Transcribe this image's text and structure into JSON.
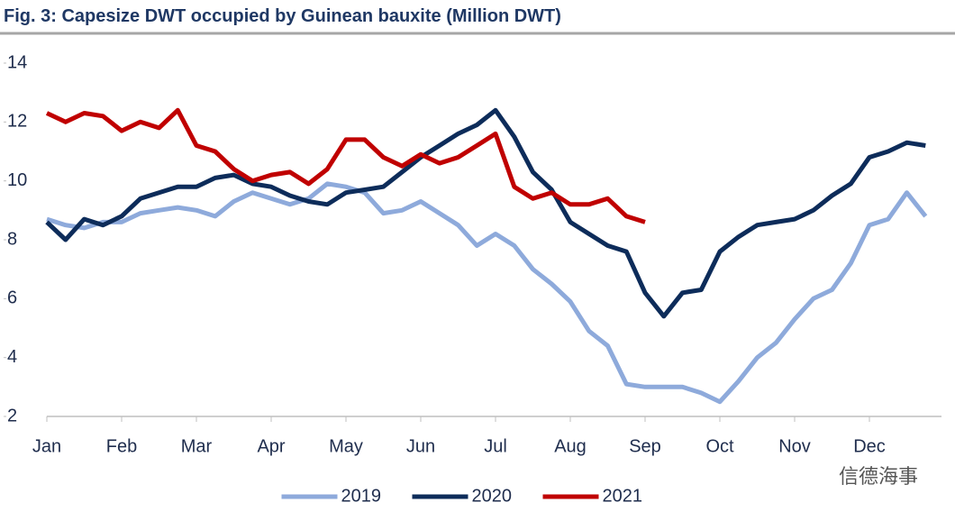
{
  "chart_data": {
    "type": "line",
    "title": "Fig. 3: Capesize DWT occupied by Guinean bauxite (Million DWT)",
    "watermark": "信德海事",
    "categories": [
      "Jan",
      null,
      null,
      null,
      "Feb",
      null,
      null,
      null,
      "Mar",
      null,
      null,
      null,
      "Apr",
      null,
      null,
      null,
      "May",
      null,
      null,
      null,
      "Jun",
      null,
      null,
      null,
      "Jul",
      null,
      null,
      null,
      "Aug",
      null,
      null,
      null,
      "Sep",
      null,
      null,
      null,
      "Oct",
      null,
      null,
      null,
      "Nov",
      null,
      null,
      null,
      "Dec",
      null,
      null,
      null
    ],
    "ylim": [
      2,
      14
    ],
    "yticks": [
      2,
      4,
      6,
      8,
      10,
      12,
      14
    ],
    "grid": false,
    "legend": "bottom",
    "series": [
      {
        "name": "2019",
        "color": "#8eaadb",
        "values": [
          8.7,
          8.5,
          8.4,
          8.6,
          8.6,
          8.9,
          9.0,
          9.1,
          9.0,
          8.8,
          9.3,
          9.6,
          9.4,
          9.2,
          9.4,
          9.9,
          9.8,
          9.6,
          8.9,
          9.0,
          9.3,
          8.9,
          8.5,
          7.8,
          8.2,
          7.8,
          7.0,
          6.5,
          5.9,
          4.9,
          4.4,
          3.1,
          3.0,
          3.0,
          3.0,
          2.8,
          2.5,
          3.2,
          4.0,
          4.5,
          5.3,
          6.0,
          6.3,
          7.2,
          8.5,
          8.7,
          9.6,
          8.8
        ]
      },
      {
        "name": "2020",
        "color": "#0d2c5a",
        "values": [
          8.6,
          8.0,
          8.7,
          8.5,
          8.8,
          9.4,
          9.6,
          9.8,
          9.8,
          10.1,
          10.2,
          9.9,
          9.8,
          9.5,
          9.3,
          9.2,
          9.6,
          9.7,
          9.8,
          10.3,
          10.8,
          11.2,
          11.6,
          11.9,
          12.4,
          11.5,
          10.3,
          9.7,
          8.6,
          8.2,
          7.8,
          7.6,
          6.2,
          5.4,
          6.2,
          6.3,
          7.6,
          8.1,
          8.5,
          8.6,
          8.7,
          9.0,
          9.5,
          9.9,
          10.8,
          11.0,
          11.3,
          11.2
        ]
      },
      {
        "name": "2021",
        "color": "#c00000",
        "values": [
          12.3,
          12.0,
          12.3,
          12.2,
          11.7,
          12.0,
          11.8,
          12.4,
          11.2,
          11.0,
          10.4,
          10.0,
          10.2,
          10.3,
          9.9,
          10.4,
          11.4,
          11.4,
          10.8,
          10.5,
          10.9,
          10.6,
          10.8,
          11.2,
          11.6,
          9.8,
          9.4,
          9.6,
          9.2,
          9.2,
          9.4,
          8.8,
          8.6,
          null,
          null,
          null,
          null,
          null,
          null,
          null,
          null,
          null,
          null,
          null,
          null,
          null,
          null,
          null
        ]
      }
    ]
  }
}
